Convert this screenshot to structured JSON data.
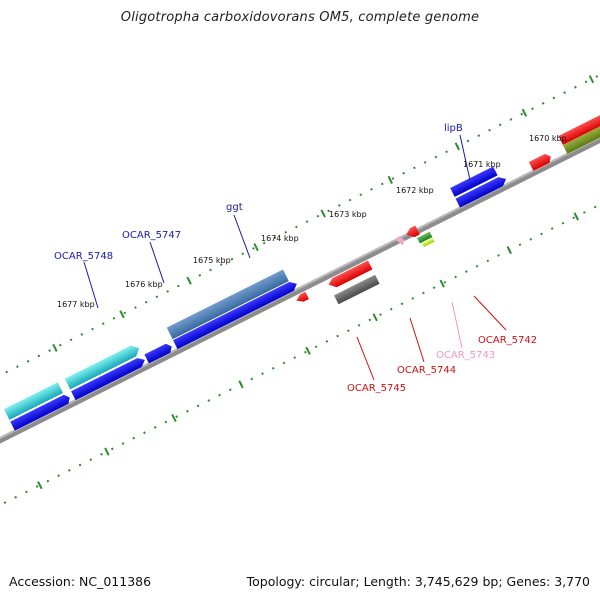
{
  "title": "Oligotropha carboxidovorans OM5, complete genome",
  "footer": {
    "accession": "Accession: NC_011386",
    "topology": "Topology: circular; Length: 3,745,629 bp; Genes: 3,770"
  },
  "colors": {
    "backbone": "#888888",
    "ticks": "#2e8b2e",
    "forward_label": "#1a1aa8",
    "reverse_label": "#cc1111",
    "faint_label": "#e89ac0"
  },
  "kbp_labels": [
    "1670 kbp",
    "1671 kbp",
    "1672 kbp",
    "1673 kbp",
    "1674 kbp",
    "1675 kbp",
    "1676 kbp",
    "1677 kbp"
  ],
  "gene_labels": {
    "lipB": "lipB",
    "ggt": "ggt",
    "ocar5747": "OCAR_5747",
    "ocar5748": "OCAR_5748",
    "ocar5742": "OCAR_5742",
    "ocar5743": "OCAR_5743",
    "ocar5744": "OCAR_5744",
    "ocar5745": "OCAR_5745"
  }
}
